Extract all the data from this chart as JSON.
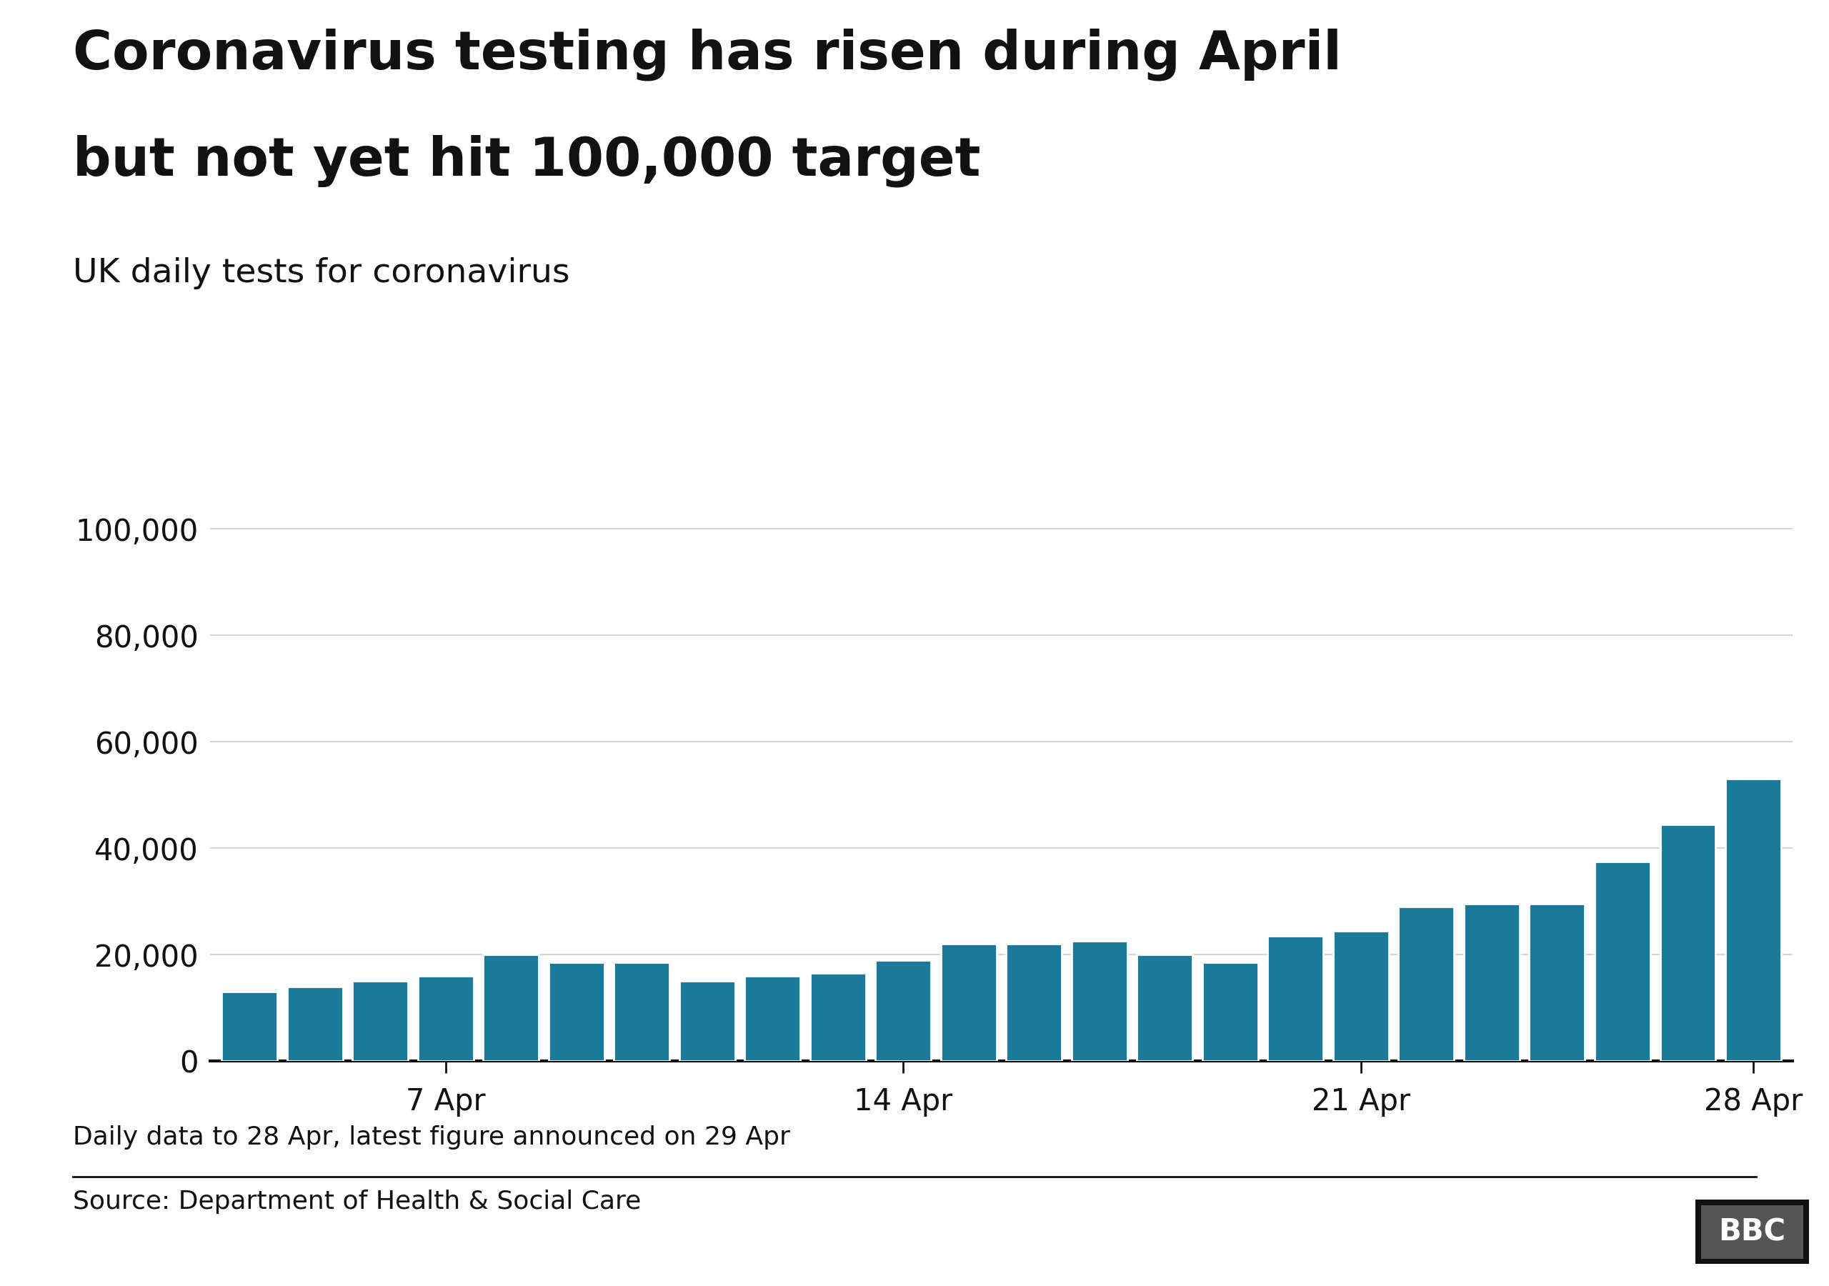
{
  "title_line1": "Coronavirus testing has risen during April",
  "title_line2": "but not yet hit 100,000 target",
  "subtitle": "UK daily tests for coronavirus",
  "bar_color": "#1a7a9a",
  "background_color": "#ffffff",
  "footnote": "Daily data to 28 Apr, latest figure announced on 29 Apr",
  "source": "Source: Department of Health & Social Care",
  "bbc_label": "BBC",
  "values": [
    13000,
    14000,
    15000,
    16000,
    20000,
    18500,
    18500,
    15000,
    16000,
    16500,
    19000,
    22000,
    22000,
    22500,
    20000,
    18500,
    23500,
    24500,
    29000,
    29500,
    29500,
    37500,
    44500,
    53000
  ],
  "xtick_positions": [
    3,
    10,
    17,
    23
  ],
  "xtick_labels": [
    "7 Apr",
    "14 Apr",
    "21 Apr",
    "28 Apr"
  ],
  "ytick_values": [
    0,
    20000,
    40000,
    60000,
    80000,
    100000
  ],
  "ylim": [
    0,
    110000
  ],
  "title_fontsize": 54,
  "subtitle_fontsize": 34,
  "tick_fontsize": 30,
  "footnote_fontsize": 26,
  "source_fontsize": 26,
  "bbc_fontsize": 30
}
